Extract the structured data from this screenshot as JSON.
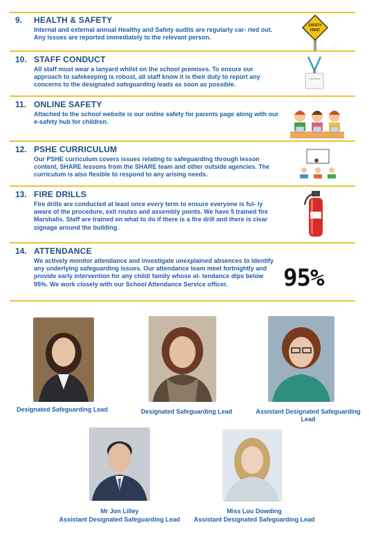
{
  "sections": [
    {
      "num": "9.",
      "title": "HEALTH & SAFETY",
      "body": "Internal and external annual Healthy and  Safety audits are regularly car- ried out.  Any issues are reported immediately to the relevant person.",
      "icon": "safety-first-sign-icon",
      "sign_text": "SAFETY FIRST"
    },
    {
      "num": "10.",
      "title": "STAFF CONDUCT",
      "body": "All staff must wear a lanyard whilst on the school premises.  To ensure our approach to safekeeping is robust, all staff know it is their duty to report any concerns to the designated safeguarding leads as soon as possible.",
      "icon": "lanyard-icon"
    },
    {
      "num": "11.",
      "title": "ONLINE SAFETY",
      "body": "Attached to the school website is our online safety for parents page along with our e-safety hub for children.",
      "icon": "children-laptops-icon"
    },
    {
      "num": "12.",
      "title": "PSHE CURRICULUM",
      "body": "Our PSHE curriculum covers issues relating to safeguarding through lesson content, SHARE lessons from the SHARE team and other outside agencies. The curriculum is also flexible to respond to any arising needs.",
      "icon": "classroom-icon"
    },
    {
      "num": "13.",
      "title": "FIRE DRILLS",
      "body": "Fire drills are conducted at least once  every term to ensure everyone is ful- ly aware of the procedure, exit routes and assembly points. We have 5 trained fire Marshalls.   Staff are trained on what to do if there is a fire drill and there is clear signage around the building.",
      "icon": "fire-extinguisher-icon"
    },
    {
      "num": "14.",
      "title": "ATTENDANCE",
      "body": "We actively monitor attendance and investigate unexplained absences to identify any underlying safeguarding issues.  Our attendance team meet fortnightly and provide early intervention for any child/ family whose at- tendance dips below 95%. We work closely with our School Attendance Service officer.",
      "icon": "percent-graphic",
      "stat": "95%"
    }
  ],
  "staff": [
    {
      "caption": "Designated Safeguarding Lead",
      "photo": "portrait-photo",
      "hair": "#3a2418",
      "bg": "#8a6e4e",
      "top": "#2a2a30"
    },
    {
      "caption": "Designated Safeguarding Lead",
      "photo": "portrait-photo",
      "hair": "#6b3a22",
      "bg": "#c7b9a6",
      "top": "#5a4a3a"
    },
    {
      "caption": "Assistant Designated Safeguarding Lead",
      "photo": "portrait-photo",
      "hair": "#7a3a1c",
      "bg": "#9cb0c0",
      "top": "#2f8f7f"
    },
    {
      "name": "Mr Jon Lilley",
      "caption": "Assistant  Designated Safeguarding Lead",
      "photo": "portrait-photo",
      "hair": "#2b2b2b",
      "bg": "#c8cdd4",
      "top": "#2e3a52"
    },
    {
      "name": "Miss Lou Dowding",
      "caption": "Assistant Designated Safeguarding Lead",
      "photo": "portrait-photo",
      "hair": "#c9a66b",
      "bg": "#dfe6ee",
      "top": "#cfd6dc"
    }
  ],
  "colors": {
    "accent": "#f2c12e",
    "heading": "#1f4e79",
    "text": "#1f5fa8"
  }
}
